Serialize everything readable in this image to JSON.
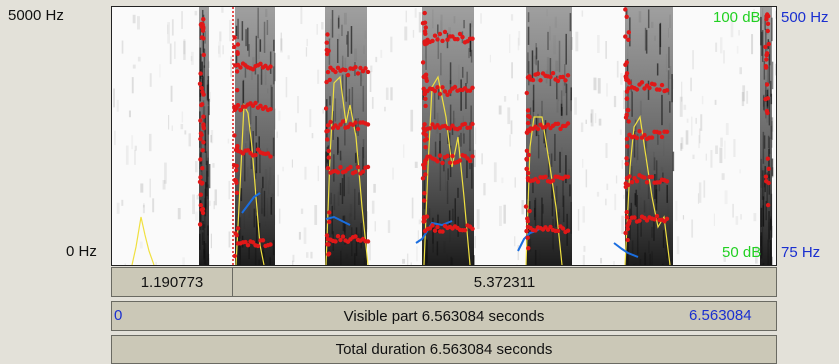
{
  "axis": {
    "freq_top": "5000 Hz",
    "freq_bottom": "0 Hz",
    "intensity_top": "100 dB",
    "intensity_bottom": "50 dB",
    "pitch_top": "500 Hz",
    "pitch_bottom": "75 Hz"
  },
  "selection": {
    "left_segment": "1.190773",
    "right_segment": "5.372311"
  },
  "visible_bar": {
    "start": "0",
    "label": "Visible part 6.563084 seconds",
    "end": "6.563084"
  },
  "total_bar": {
    "label": "Total duration 6.563084 seconds"
  },
  "colors": {
    "formant": "#e01818",
    "pitch": "#1a6ee0",
    "intensity": "#f0e040",
    "cursor": "#e01818",
    "intensity_label": "#22d022",
    "pitch_label": "#1a2fd0"
  }
}
